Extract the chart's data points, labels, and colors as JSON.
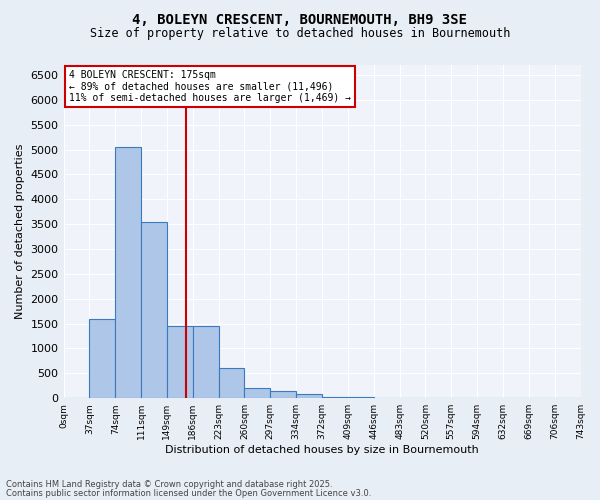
{
  "title": "4, BOLEYN CRESCENT, BOURNEMOUTH, BH9 3SE",
  "subtitle": "Size of property relative to detached houses in Bournemouth",
  "xlabel": "Distribution of detached houses by size in Bournemouth",
  "ylabel": "Number of detached properties",
  "bin_labels": [
    "0sqm",
    "37sqm",
    "74sqm",
    "111sqm",
    "149sqm",
    "186sqm",
    "223sqm",
    "260sqm",
    "297sqm",
    "334sqm",
    "372sqm",
    "409sqm",
    "446sqm",
    "483sqm",
    "520sqm",
    "557sqm",
    "594sqm",
    "632sqm",
    "669sqm",
    "706sqm",
    "743sqm"
  ],
  "bar_values": [
    10,
    1600,
    5050,
    3550,
    1450,
    1450,
    600,
    200,
    150,
    80,
    20,
    15,
    10,
    5,
    2,
    1,
    1,
    0,
    0,
    0
  ],
  "bar_color": "#aec6e8",
  "bar_edge_color": "#3a7abf",
  "property_line_x": 175,
  "bin_width": 37,
  "annotation_title": "4 BOLEYN CRESCENT: 175sqm",
  "annotation_line1": "← 89% of detached houses are smaller (11,496)",
  "annotation_line2": "11% of semi-detached houses are larger (1,469) →",
  "vline_color": "#cc0000",
  "annotation_box_color": "#cc0000",
  "ylim": [
    0,
    6700
  ],
  "yticks": [
    0,
    500,
    1000,
    1500,
    2000,
    2500,
    3000,
    3500,
    4000,
    4500,
    5000,
    5500,
    6000,
    6500
  ],
  "footer1": "Contains HM Land Registry data © Crown copyright and database right 2025.",
  "footer2": "Contains public sector information licensed under the Open Government Licence v3.0.",
  "bg_color": "#e8eef5",
  "plot_bg_color": "#f0f4fa"
}
